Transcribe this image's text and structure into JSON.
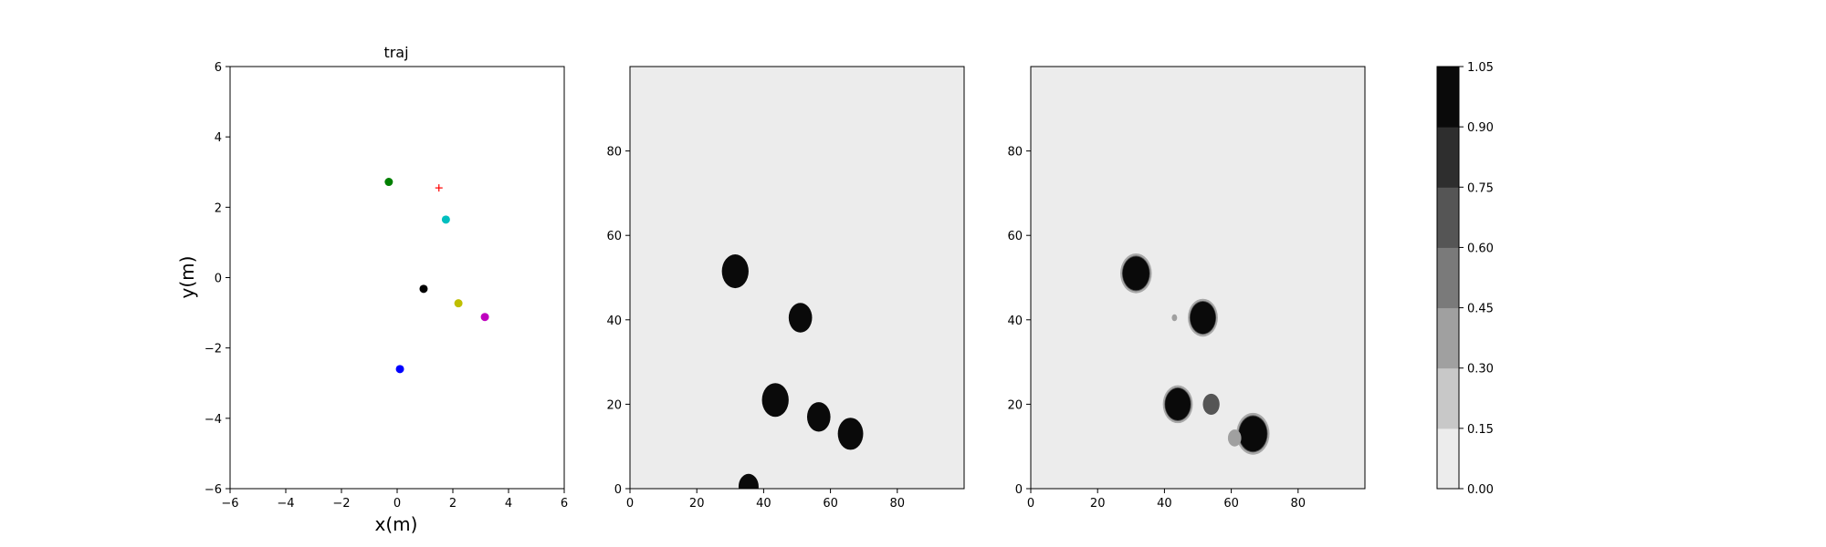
{
  "chart_data": [
    {
      "type": "scatter",
      "title": "traj",
      "xlabel": "x(m)",
      "ylabel": "y(m)",
      "xlim": [
        -6,
        6
      ],
      "ylim": [
        -6,
        6
      ],
      "xticks": [
        "−6",
        "−4",
        "−2",
        "0",
        "2",
        "4",
        "6"
      ],
      "yticks": [
        "−6",
        "−4",
        "−2",
        "0",
        "2",
        "4",
        "6"
      ],
      "grid": false,
      "points": [
        {
          "x": -0.3,
          "y": 2.72,
          "color": "#007f00",
          "marker": "circle"
        },
        {
          "x": 1.75,
          "y": 1.65,
          "color": "#00bfbf",
          "marker": "circle"
        },
        {
          "x": 0.95,
          "y": -0.32,
          "color": "#000000",
          "marker": "circle"
        },
        {
          "x": 2.2,
          "y": -0.73,
          "color": "#bfbf00",
          "marker": "circle"
        },
        {
          "x": 3.15,
          "y": -1.12,
          "color": "#bf00bf",
          "marker": "circle"
        },
        {
          "x": 0.1,
          "y": -2.6,
          "color": "#0000ff",
          "marker": "circle"
        },
        {
          "x": 1.5,
          "y": 2.55,
          "color": "#ff0000",
          "marker": "plus"
        }
      ]
    },
    {
      "type": "heatmap",
      "title": "",
      "xlabel": "",
      "ylabel": "",
      "xlim": [
        0,
        100
      ],
      "ylim": [
        0,
        100
      ],
      "xticks": [
        "0",
        "20",
        "40",
        "60",
        "80"
      ],
      "yticks": [
        "0",
        "20",
        "40",
        "60",
        "80"
      ],
      "background_value": 0.05,
      "blobs": [
        {
          "x": 31.5,
          "y": 51.5,
          "radius": 4,
          "value": 1.0
        },
        {
          "x": 51,
          "y": 40.5,
          "radius": 3.5,
          "value": 1.0
        },
        {
          "x": 43.5,
          "y": 21,
          "radius": 4,
          "value": 1.0
        },
        {
          "x": 56.5,
          "y": 17,
          "radius": 3.5,
          "value": 1.0
        },
        {
          "x": 66,
          "y": 13,
          "radius": 3.8,
          "value": 1.0
        },
        {
          "x": 35.5,
          "y": 0.5,
          "radius": 3,
          "value": 1.0
        }
      ]
    },
    {
      "type": "heatmap",
      "title": "",
      "xlabel": "",
      "ylabel": "",
      "xlim": [
        0,
        100
      ],
      "ylim": [
        0,
        100
      ],
      "xticks": [
        "0",
        "20",
        "40",
        "60",
        "80"
      ],
      "yticks": [
        "0",
        "20",
        "40",
        "60",
        "80"
      ],
      "background_value": 0.05,
      "blobs": [
        {
          "x": 31.5,
          "y": 51,
          "radius": 4,
          "value": 1.0
        },
        {
          "x": 51.5,
          "y": 40.5,
          "radius": 3.8,
          "value": 1.0
        },
        {
          "x": 44,
          "y": 20,
          "radius": 3.8,
          "value": 1.0
        },
        {
          "x": 54,
          "y": 20,
          "radius": 2.5,
          "value": 0.6
        },
        {
          "x": 66.5,
          "y": 13,
          "radius": 4.2,
          "value": 1.0
        },
        {
          "x": 61,
          "y": 12,
          "radius": 2,
          "value": 0.3
        },
        {
          "x": 43,
          "y": 40.5,
          "radius": 0.8,
          "value": 0.3
        }
      ]
    }
  ],
  "colorbar": {
    "ticks": [
      "0.00",
      "0.15",
      "0.30",
      "0.45",
      "0.60",
      "0.75",
      "0.90",
      "1.05"
    ],
    "level_colors": [
      "#ececec",
      "#c8c8c8",
      "#a0a0a0",
      "#7a7a7a",
      "#555555",
      "#2e2e2e",
      "#0a0a0a"
    ]
  }
}
